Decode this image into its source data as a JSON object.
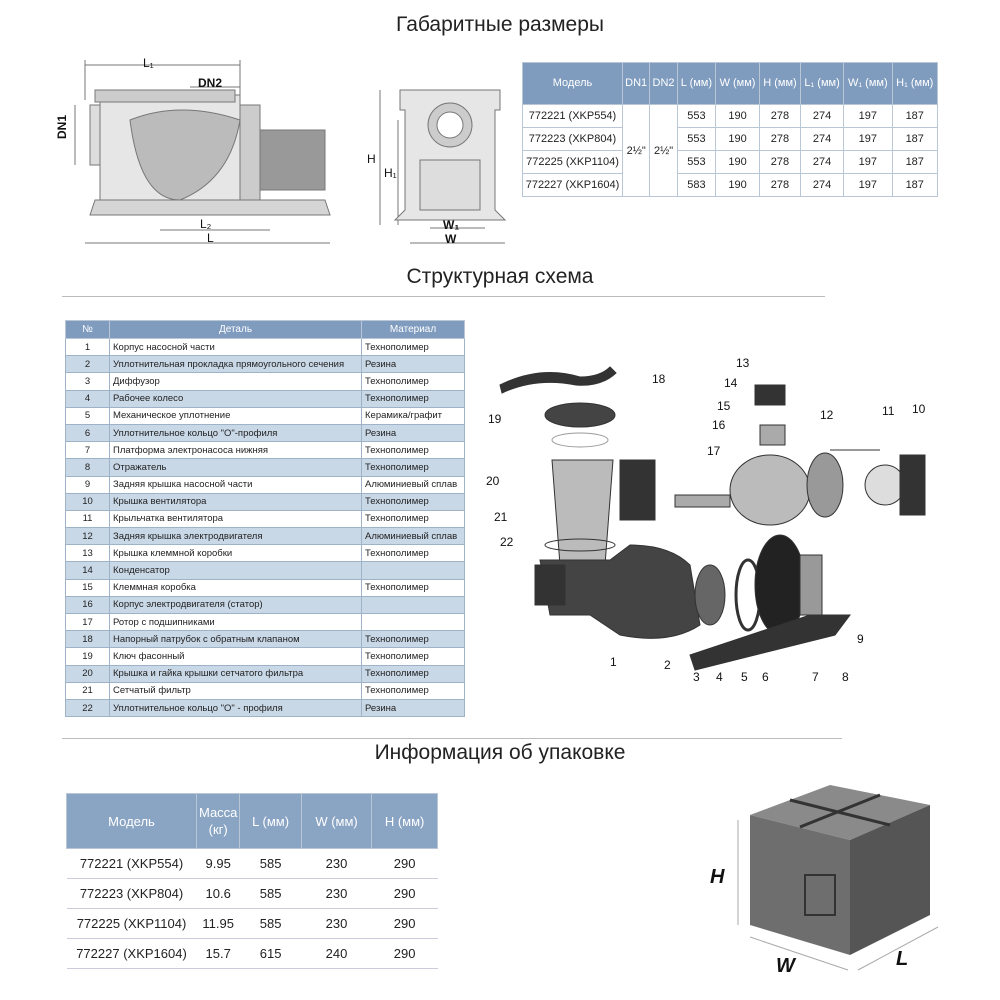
{
  "sections": {
    "dimensions": "Габаритные размеры",
    "structure": "Структурная схема",
    "packing": "Информация об упаковке"
  },
  "drawing_labels": {
    "l1": "L₁",
    "dn2": "DN2",
    "dn1": "DN1",
    "l2": "L₂",
    "l": "L",
    "h": "H",
    "h1": "H₁",
    "w1": "W₁",
    "w": "W"
  },
  "dimensions_table": {
    "headers": [
      "Модель",
      "DN1",
      "DN2",
      "L (мм)",
      "W (мм)",
      "H (мм)",
      "L₁ (мм)",
      "W₁ (мм)",
      "H₁ (мм)"
    ],
    "dn1": "2½\"",
    "dn2": "2½\"",
    "rows": [
      {
        "model": "772221 (XKP554)",
        "L": "553",
        "W": "190",
        "H": "278",
        "L1": "274",
        "W1": "197",
        "H1": "187"
      },
      {
        "model": "772223 (XKP804)",
        "L": "553",
        "W": "190",
        "H": "278",
        "L1": "274",
        "W1": "197",
        "H1": "187"
      },
      {
        "model": "772225 (XKP1104)",
        "L": "553",
        "W": "190",
        "H": "278",
        "L1": "274",
        "W1": "197",
        "H1": "187"
      },
      {
        "model": "772227 (XKP1604)",
        "L": "583",
        "W": "190",
        "H": "278",
        "L1": "274",
        "W1": "197",
        "H1": "187"
      }
    ]
  },
  "parts_table": {
    "headers": [
      "№",
      "Деталь",
      "Материал"
    ],
    "rows": [
      [
        "1",
        "Корпус насосной части",
        "Технополимер"
      ],
      [
        "2",
        "Уплотнительная прокладка прямоугольного сечения",
        "Резина"
      ],
      [
        "3",
        "Диффузор",
        "Технополимер"
      ],
      [
        "4",
        "Рабочее колесо",
        "Технополимер"
      ],
      [
        "5",
        "Механическое уплотнение",
        "Керамика/графит"
      ],
      [
        "6",
        "Уплотнительное кольцо \"О\"-профиля",
        "Резина"
      ],
      [
        "7",
        "Платформа электронасоса нижняя",
        "Технополимер"
      ],
      [
        "8",
        "Отражатель",
        "Технополимер"
      ],
      [
        "9",
        "Задняя крышка насосной части",
        "Алюминиевый сплав"
      ],
      [
        "10",
        "Крышка вентилятора",
        "Технополимер"
      ],
      [
        "11",
        "Крыльчатка вентилятора",
        "Технополимер"
      ],
      [
        "12",
        "Задняя крышка электродвигателя",
        "Алюминиевый сплав"
      ],
      [
        "13",
        "Крышка клеммной коробки",
        "Технополимер"
      ],
      [
        "14",
        "Конденсатор",
        ""
      ],
      [
        "15",
        "Клеммная коробка",
        "Технополимер"
      ],
      [
        "16",
        "Корпус электродвигателя (статор)",
        ""
      ],
      [
        "17",
        "Ротор с подшипниками",
        ""
      ],
      [
        "18",
        "Напорный патрубок с обратным клапаном",
        "Технополимер"
      ],
      [
        "19",
        "Ключ фасонный",
        "Технополимер"
      ],
      [
        "20",
        "Крышка и гайка крышки сетчатого фильтра",
        "Технополимер"
      ],
      [
        "21",
        "Сетчатый фильтр",
        "Технополимер"
      ],
      [
        "22",
        "Уплотнительное кольцо \"О\" - профиля",
        "Резина"
      ]
    ]
  },
  "diagram_callouts": [
    "1",
    "2",
    "3",
    "4",
    "5",
    "6",
    "7",
    "8",
    "9",
    "10",
    "11",
    "12",
    "13",
    "14",
    "15",
    "16",
    "17",
    "18",
    "19",
    "20",
    "21",
    "22"
  ],
  "packing_table": {
    "headers": [
      "Модель",
      "Масса (кг)",
      "L (мм)",
      "W (мм)",
      "H (мм)"
    ],
    "rows": [
      [
        "772221 (XKP554)",
        "9.95",
        "585",
        "230",
        "290"
      ],
      [
        "772223 (XKP804)",
        "10.6",
        "585",
        "230",
        "290"
      ],
      [
        "772225 (XKP1104)",
        "11.95",
        "585",
        "230",
        "290"
      ],
      [
        "772227 (XKP1604)",
        "15.7",
        "615",
        "240",
        "290"
      ]
    ]
  },
  "box_labels": {
    "h": "H",
    "w": "W",
    "l": "L"
  },
  "colors": {
    "header": "#7f9cbf",
    "row_alt": "#c9d8e7"
  }
}
